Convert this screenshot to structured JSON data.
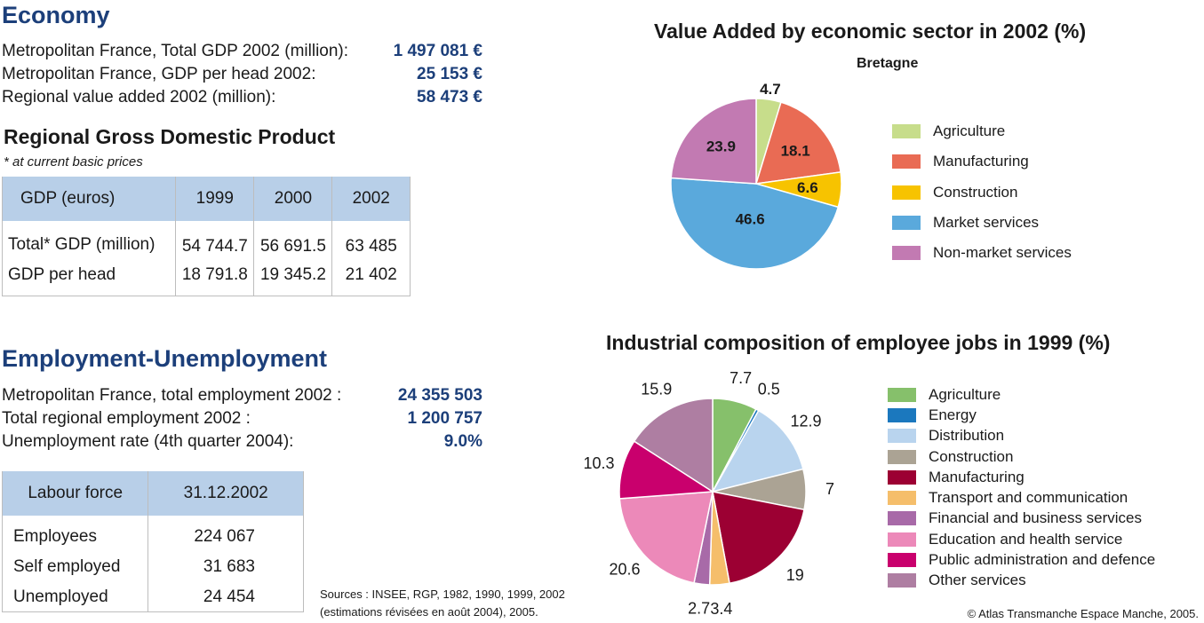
{
  "economy": {
    "title": "Economy",
    "rows": [
      {
        "label": "Metropolitan France, Total GDP 2002 (million):",
        "value": "1 497 081 €"
      },
      {
        "label": "Metropolitan France, GDP per head 2002:",
        "value": "25 153 €"
      },
      {
        "label": "Regional value added 2002 (million):",
        "value": "58 473 €"
      }
    ]
  },
  "gdp_table": {
    "title": "Regional Gross Domestic Product",
    "note": "* at current basic prices",
    "headers": [
      "GDP (euros)",
      "1999",
      "2000",
      "2002"
    ],
    "rows": [
      [
        "Total* GDP (million)",
        "54 744.7",
        "56 691.5",
        "63 485"
      ],
      [
        "GDP per head",
        "18 791.8",
        "19 345.2",
        "21 402"
      ]
    ]
  },
  "employment": {
    "title": "Employment-Unemployment",
    "rows": [
      {
        "label": "Metropolitan France, total employment 2002 :",
        "value": "24 355 503"
      },
      {
        "label": "Total regional employment 2002 :",
        "value": "1 200 757"
      },
      {
        "label": "Unemployment rate (4th quarter 2004):",
        "value": "9.0%"
      }
    ]
  },
  "labour_table": {
    "headers": [
      "Labour force",
      "31.12.2002"
    ],
    "rows": [
      [
        "Employees",
        "224 067"
      ],
      [
        "Self employed",
        "31 683"
      ],
      [
        "Unemployed",
        "24 454"
      ]
    ]
  },
  "sources": {
    "line1": "Sources : INSEE, RGP, 1982, 1990, 1999, 2002",
    "line2": "(estimations révisées en août 2004), 2005."
  },
  "copyright": "© Atlas Transmanche Espace Manche, 2005.",
  "chart_data": [
    {
      "type": "pie",
      "title": "Value Added by economic sector in 2002 (%)",
      "subtitle": "Bretagne",
      "legend_position": "right",
      "categories": [
        "Agriculture",
        "Manufacturing",
        "Construction",
        "Market services",
        "Non-market services"
      ],
      "values": [
        4.7,
        18.1,
        6.6,
        46.6,
        23.9
      ],
      "labels": [
        "4.7",
        "18.1",
        "6.6",
        "46.6",
        "23.9"
      ],
      "colors": [
        "#c7dd8b",
        "#e96b54",
        "#f7c300",
        "#5aa9dc",
        "#c27ab2"
      ]
    },
    {
      "type": "pie",
      "title": "Industrial composition of employee jobs in 1999 (%)",
      "legend_position": "right",
      "categories": [
        "Agriculture",
        "Energy",
        "Distribution",
        "Construction",
        "Manufacturing",
        "Transport and communication",
        "Financial and business services",
        "Education and health service",
        "Public administration and defence",
        "Other services"
      ],
      "values": [
        7.7,
        0.5,
        12.9,
        7,
        19,
        3.4,
        2.7,
        20.6,
        10.3,
        15.9
      ],
      "labels": [
        "7.7",
        "0.5",
        "12.9",
        "7",
        "19",
        "3.4",
        "2.7",
        "20.6",
        "10.3",
        "15.9"
      ],
      "colors": [
        "#86c06b",
        "#1b78be",
        "#b9d4ee",
        "#aba394",
        "#9c0033",
        "#f5be6b",
        "#a86aa8",
        "#ec89b9",
        "#c9006d",
        "#ae7ea2"
      ]
    }
  ]
}
